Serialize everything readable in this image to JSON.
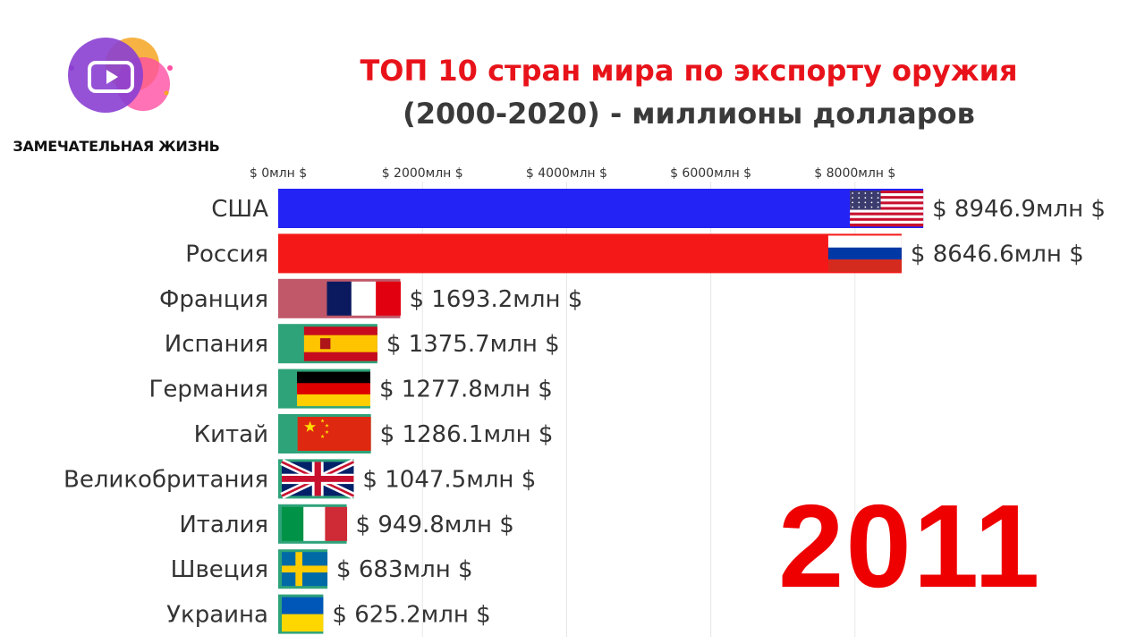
{
  "channel": {
    "name": "ЗАМЕЧАТЕЛЬНАЯ ЖИЗНЬ"
  },
  "header": {
    "title_line1": "ТОП 10 стран мира по экспорту оружия",
    "title_line2": "(2000-2020) - миллионы долларов"
  },
  "year": "2011",
  "chart_data": {
    "type": "bar",
    "orientation": "horizontal",
    "x_ticks": [
      {
        "value": 0,
        "label": "$ 0млн $"
      },
      {
        "value": 2000,
        "label": "$ 2000млн $"
      },
      {
        "value": 4000,
        "label": "$ 4000млн $"
      },
      {
        "value": 6000,
        "label": "$ 6000млн $"
      },
      {
        "value": 8000,
        "label": "$ 8000млн $"
      }
    ],
    "categories": [
      "США",
      "Россия",
      "Франция",
      "Испания",
      "Германия",
      "Китай",
      "Великобритания",
      "Италия",
      "Швеция",
      "Украина"
    ],
    "values": [
      8946.9,
      8646.6,
      1693.2,
      1375.7,
      1277.8,
      1286.1,
      1047.5,
      949.8,
      683,
      625.2
    ],
    "value_labels": [
      "$ 8946.9млн $",
      "$ 8646.6млн $",
      "$ 1693.2млн $",
      "$ 1375.7млн $",
      "$ 1277.8млн $",
      "$ 1286.1млн $",
      "$ 1047.5млн $",
      "$ 949.8млн $",
      "$ 683млн $",
      "$ 625.2млн $"
    ],
    "bar_colors": [
      "#2323f5",
      "#f51818",
      "#c0586a",
      "#2ea37a",
      "#2ea37a",
      "#2ea37a",
      "#2ea37a",
      "#2ea37a",
      "#2ea37a",
      "#2ea37a"
    ],
    "flags": [
      "flag-usa",
      "flag-russia",
      "flag-france",
      "flag-spain",
      "flag-germany",
      "flag-china",
      "flag-uk",
      "flag-italy",
      "flag-sweden",
      "flag-ukraine"
    ],
    "grid": true
  }
}
